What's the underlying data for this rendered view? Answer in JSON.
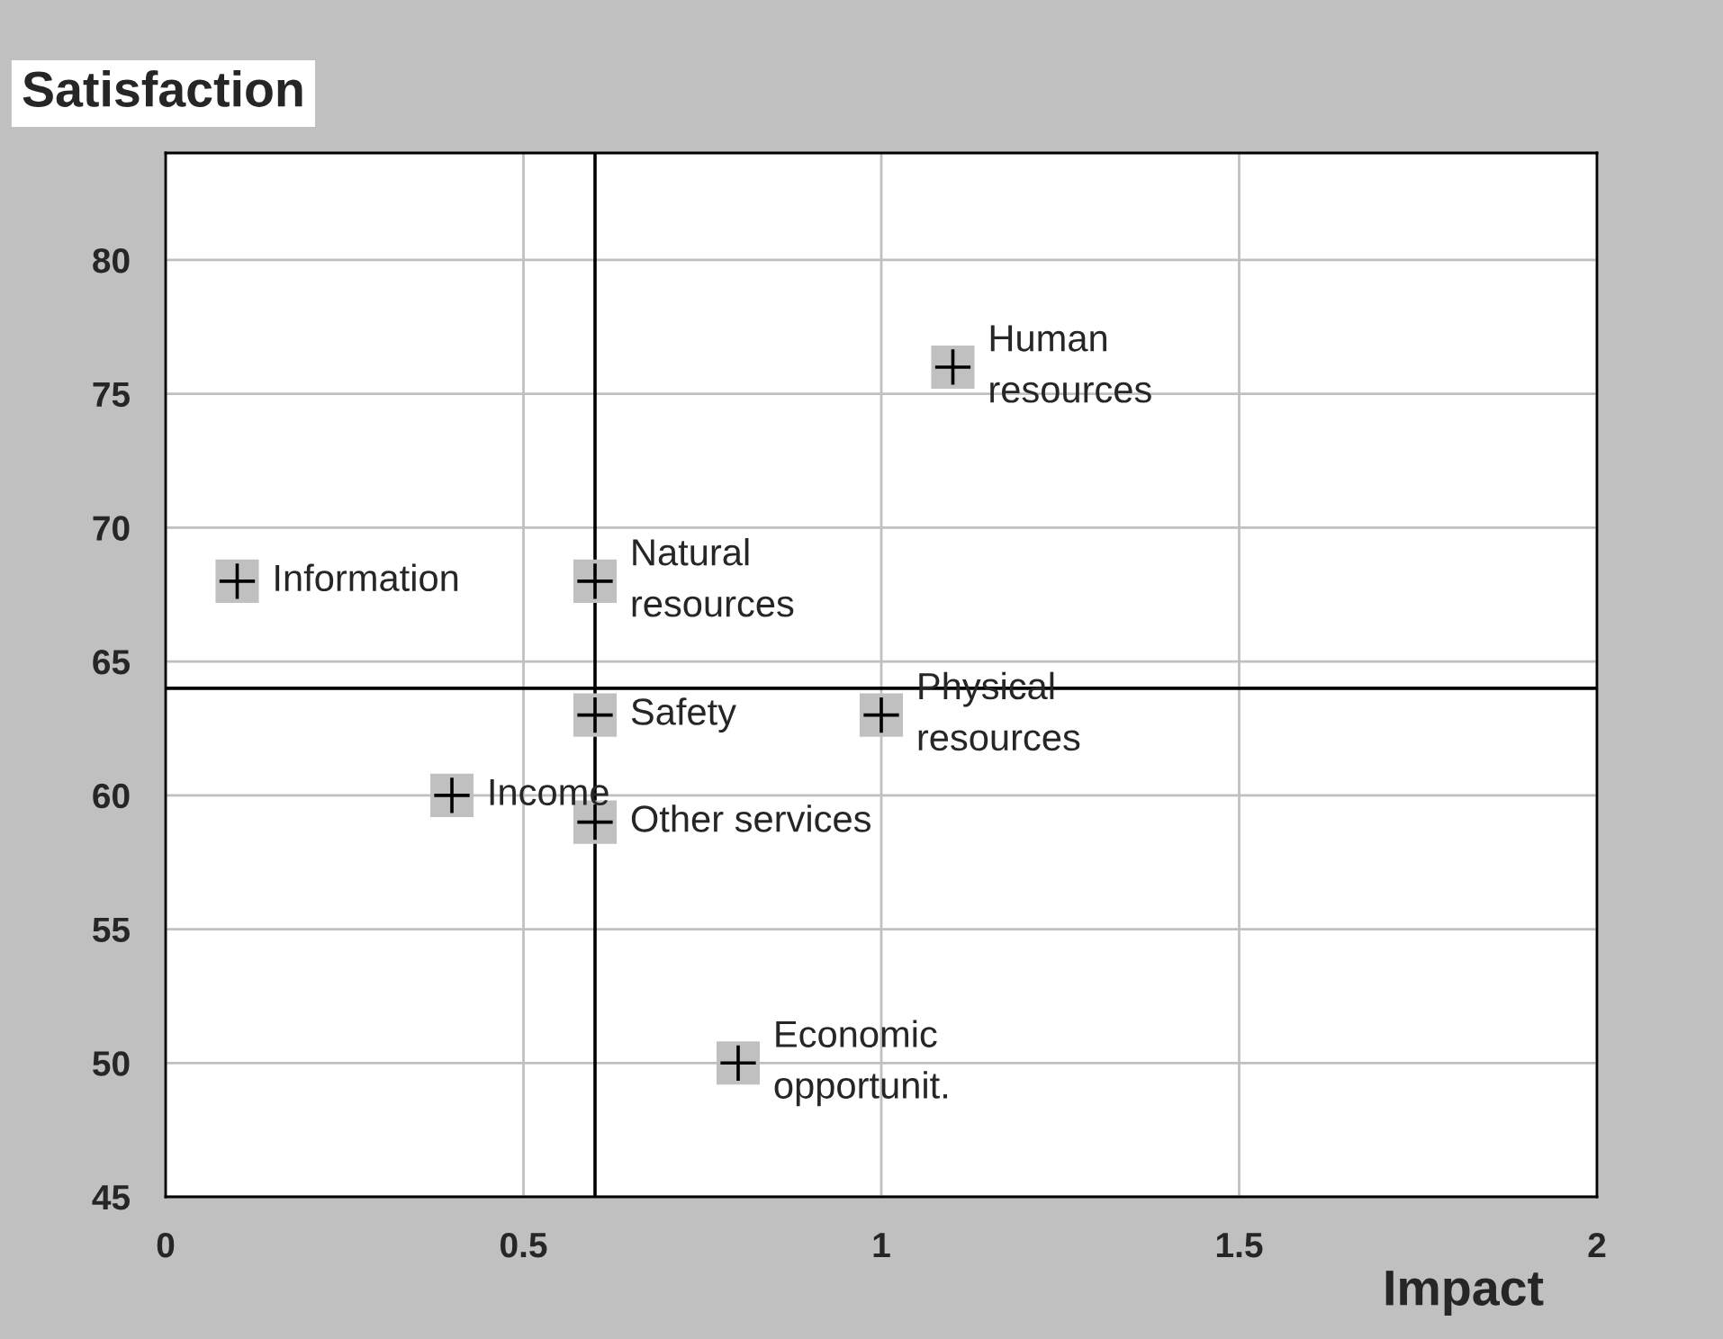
{
  "chart_data": {
    "type": "scatter",
    "title": "Satisfaction",
    "xlabel": "Impact",
    "x": [
      0.1,
      0.6,
      1.1,
      0.6,
      1.0,
      0.4,
      0.6,
      0.8
    ],
    "series": [
      {
        "color": "#c0c0c0",
        "values": [
          68,
          68,
          76,
          63,
          63,
          60,
          59,
          50
        ]
      }
    ],
    "marker": "square",
    "annotations": [
      {
        "text": "Information",
        "x": 0.1,
        "y": 68
      },
      {
        "text": "Natural\nresources",
        "x": 0.6,
        "y": 68
      },
      {
        "text": "Human\nresources",
        "x": 1.1,
        "y": 76
      },
      {
        "text": "Safety",
        "x": 0.6,
        "y": 63
      },
      {
        "text": "Physical\nresources",
        "x": 1.0,
        "y": 63
      },
      {
        "text": "Income",
        "x": 0.4,
        "y": 60
      },
      {
        "text": "Other services",
        "x": 0.6,
        "y": 59
      },
      {
        "text": "Economic\nopportunit.",
        "x": 0.8,
        "y": 50
      }
    ],
    "ref_lines": [
      {
        "axis": "x",
        "value": 0.6,
        "color": "#000000"
      },
      {
        "axis": "y",
        "value": 64,
        "color": "#000000"
      }
    ],
    "xlim": [
      0,
      2
    ],
    "xticks": [
      0,
      0.5,
      1,
      1.5,
      2
    ],
    "ylim": [
      45,
      84
    ],
    "yticks": [
      45,
      50,
      55,
      60,
      65,
      70,
      75,
      80
    ],
    "grid": true,
    "legend": false
  }
}
